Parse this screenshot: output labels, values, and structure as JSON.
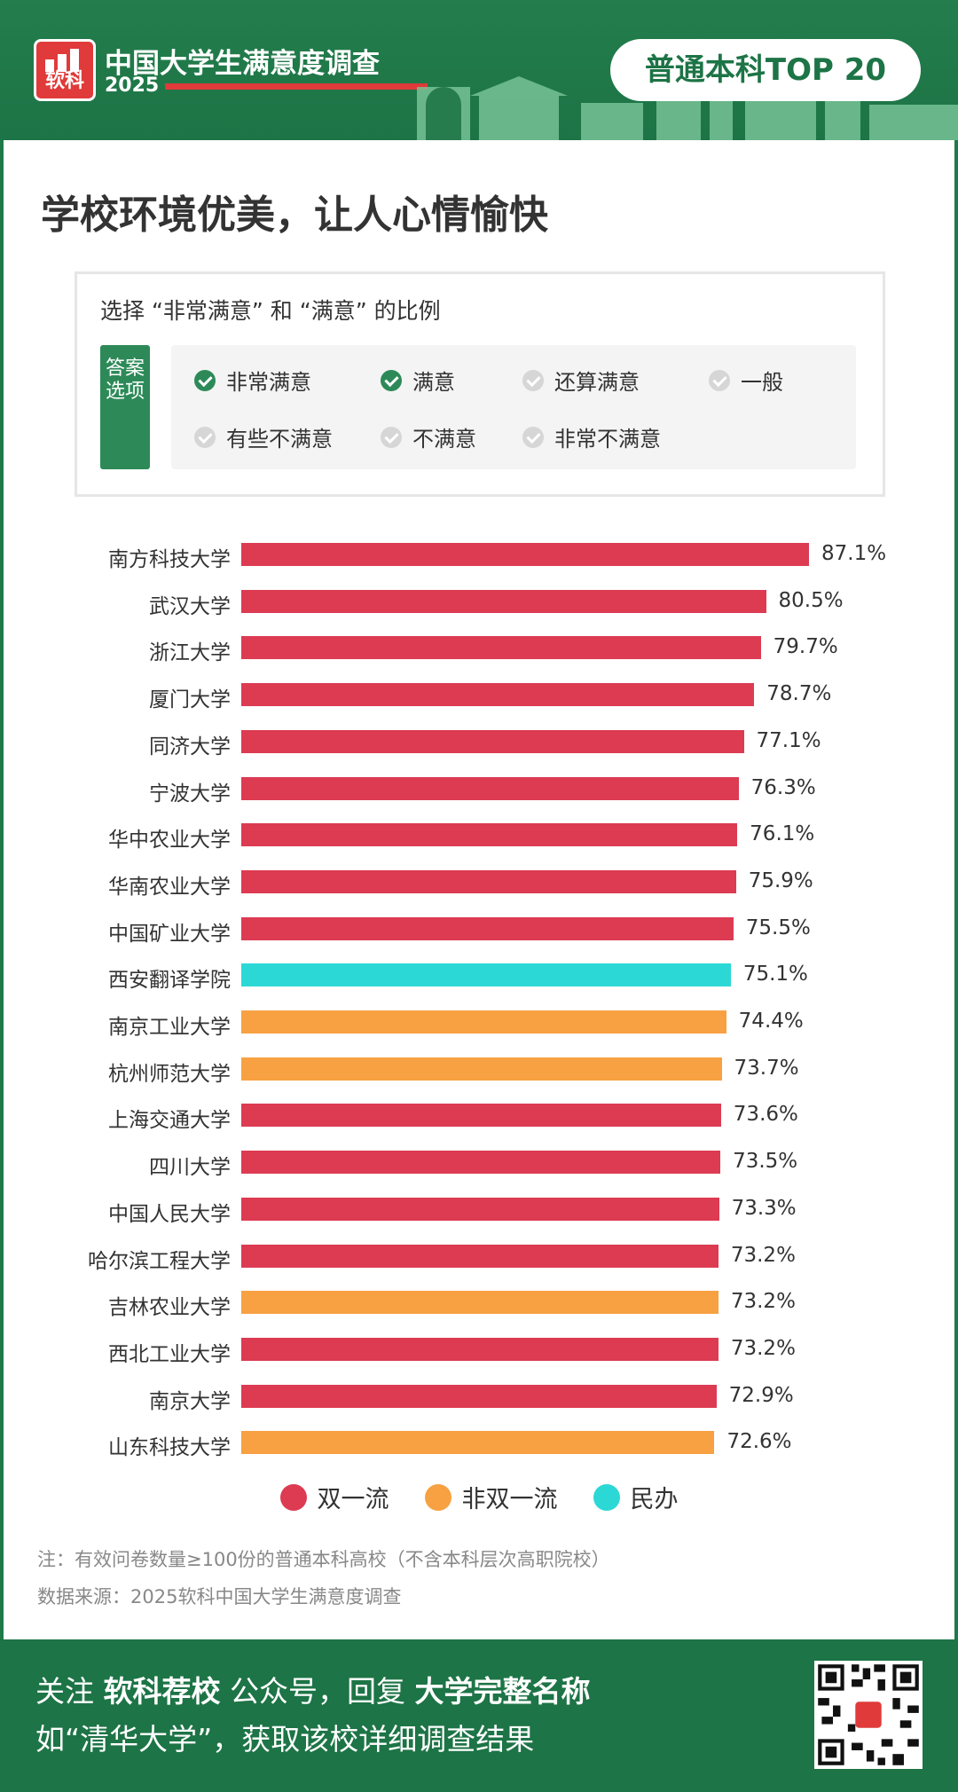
{
  "header": {
    "logo_text": "软科",
    "survey_title": "中国大学生满意度调查",
    "year": "2025",
    "badge": "普通本科TOP 20"
  },
  "headline": "学校环境优美，让人心情愉快",
  "question": "选择 “非常满意” 和 “满意” 的比例",
  "answer_tag": "答案选项",
  "options": [
    {
      "label": "非常满意",
      "checked": true
    },
    {
      "label": "满意",
      "checked": true
    },
    {
      "label": "还算满意",
      "checked": false
    },
    {
      "label": "一般",
      "checked": false
    },
    {
      "label": "有些不满意",
      "checked": false
    },
    {
      "label": "不满意",
      "checked": false
    },
    {
      "label": "非常不满意",
      "checked": false
    }
  ],
  "chart_data": {
    "type": "bar",
    "orientation": "horizontal",
    "categories": [
      "南方科技大学",
      "武汉大学",
      "浙江大学",
      "厦门大学",
      "同济大学",
      "宁波大学",
      "华中农业大学",
      "华南农业大学",
      "中国矿业大学",
      "西安翻译学院",
      "南京工业大学",
      "杭州师范大学",
      "上海交通大学",
      "四川大学",
      "中国人民大学",
      "哈尔滨工程大学",
      "吉林农业大学",
      "西北工业大学",
      "南京大学",
      "山东科技大学"
    ],
    "values": [
      87.1,
      80.5,
      79.7,
      78.7,
      77.1,
      76.3,
      76.1,
      75.9,
      75.5,
      75.1,
      74.4,
      73.7,
      73.6,
      73.5,
      73.3,
      73.2,
      73.2,
      73.2,
      72.9,
      72.6
    ],
    "value_labels": [
      "87.1%",
      "80.5%",
      "79.7%",
      "78.7%",
      "77.1%",
      "76.3%",
      "76.1%",
      "75.9%",
      "75.5%",
      "75.1%",
      "74.4%",
      "73.7%",
      "73.6%",
      "73.5%",
      "73.3%",
      "73.2%",
      "73.2%",
      "73.2%",
      "72.9%",
      "72.6%"
    ],
    "groups": [
      "双一流",
      "双一流",
      "双一流",
      "双一流",
      "双一流",
      "双一流",
      "双一流",
      "双一流",
      "双一流",
      "民办",
      "非双一流",
      "非双一流",
      "双一流",
      "双一流",
      "双一流",
      "双一流",
      "非双一流",
      "双一流",
      "双一流",
      "非双一流"
    ],
    "legend": [
      {
        "name": "双一流",
        "color": "#dc3b52"
      },
      {
        "name": "非双一流",
        "color": "#f7a142"
      },
      {
        "name": "民办",
        "color": "#2cd8d6"
      }
    ],
    "unit": "%"
  },
  "notes": {
    "note": "注：有效问卷数量≥100份的普通本科高校（不含本科层次高职院校）",
    "source": "数据来源：2025软科中国大学生满意度调查"
  },
  "footer": {
    "line1_a": "关注 ",
    "line1_b": "软科荐校",
    "line1_c": " 公众号，回复 ",
    "line1_d": "大学完整名称",
    "line2": "如“清华大学”，获取该校详细调查结果"
  }
}
